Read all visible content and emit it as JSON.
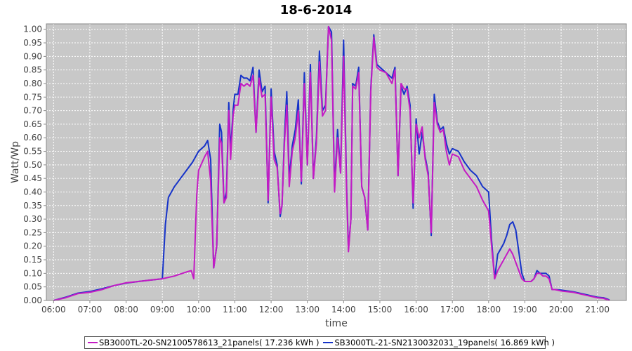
{
  "chart_data": {
    "type": "line",
    "title": "18-6-2014",
    "xlabel": "time",
    "ylabel": "Watt/Wp",
    "xlim": [
      "05:48",
      "21:48"
    ],
    "ylim": [
      0,
      1.02
    ],
    "grid": true,
    "legend_position": "bottom",
    "x_ticks": [
      "06:00",
      "07:00",
      "08:00",
      "09:00",
      "10:00",
      "11:00",
      "12:00",
      "13:00",
      "14:00",
      "15:00",
      "16:00",
      "17:00",
      "18:00",
      "19:00",
      "20:00",
      "21:00"
    ],
    "y_ticks": [
      "0.00",
      "0.05",
      "0.10",
      "0.15",
      "0.20",
      "0.25",
      "0.30",
      "0.35",
      "0.40",
      "0.45",
      "0.50",
      "0.55",
      "0.60",
      "0.65",
      "0.70",
      "0.75",
      "0.80",
      "0.85",
      "0.90",
      "0.95",
      "1.00"
    ],
    "series": [
      {
        "name": "SB3000TL-20-SN2100578613_21panels( 17.236 kWh )",
        "color": "#c41bc4",
        "points": [
          [
            "06:00",
            0.0
          ],
          [
            "06:20",
            0.01
          ],
          [
            "06:40",
            0.025
          ],
          [
            "07:00",
            0.03
          ],
          [
            "07:20",
            0.04
          ],
          [
            "07:40",
            0.055
          ],
          [
            "08:00",
            0.065
          ],
          [
            "08:20",
            0.07
          ],
          [
            "08:40",
            0.075
          ],
          [
            "09:00",
            0.08
          ],
          [
            "09:20",
            0.09
          ],
          [
            "09:40",
            0.105
          ],
          [
            "09:48",
            0.11
          ],
          [
            "09:52",
            0.08
          ],
          [
            "09:57",
            0.39
          ],
          [
            "10:00",
            0.48
          ],
          [
            "10:10",
            0.53
          ],
          [
            "10:15",
            0.55
          ],
          [
            "10:20",
            0.44
          ],
          [
            "10:25",
            0.12
          ],
          [
            "10:30",
            0.2
          ],
          [
            "10:35",
            0.6
          ],
          [
            "10:38",
            0.58
          ],
          [
            "10:42",
            0.36
          ],
          [
            "10:46",
            0.38
          ],
          [
            "10:50",
            0.7
          ],
          [
            "10:53",
            0.52
          ],
          [
            "10:57",
            0.68
          ],
          [
            "11:00",
            0.72
          ],
          [
            "11:05",
            0.72
          ],
          [
            "11:10",
            0.8
          ],
          [
            "11:15",
            0.79
          ],
          [
            "11:20",
            0.8
          ],
          [
            "11:25",
            0.79
          ],
          [
            "11:30",
            0.83
          ],
          [
            "11:35",
            0.62
          ],
          [
            "11:40",
            0.82
          ],
          [
            "11:45",
            0.75
          ],
          [
            "11:50",
            0.76
          ],
          [
            "11:55",
            0.37
          ],
          [
            "12:00",
            0.75
          ],
          [
            "12:05",
            0.52
          ],
          [
            "12:10",
            0.49
          ],
          [
            "12:15",
            0.32
          ],
          [
            "12:18",
            0.35
          ],
          [
            "12:22",
            0.58
          ],
          [
            "12:26",
            0.72
          ],
          [
            "12:30",
            0.42
          ],
          [
            "12:35",
            0.55
          ],
          [
            "12:40",
            0.6
          ],
          [
            "12:45",
            0.7
          ],
          [
            "12:50",
            0.44
          ],
          [
            "12:55",
            0.8
          ],
          [
            "13:00",
            0.5
          ],
          [
            "13:05",
            0.84
          ],
          [
            "13:10",
            0.45
          ],
          [
            "13:15",
            0.58
          ],
          [
            "13:20",
            0.88
          ],
          [
            "13:25",
            0.68
          ],
          [
            "13:30",
            0.7
          ],
          [
            "13:35",
            1.01
          ],
          [
            "13:40",
            0.96
          ],
          [
            "13:45",
            0.4
          ],
          [
            "13:50",
            0.6
          ],
          [
            "13:55",
            0.47
          ],
          [
            "14:00",
            0.9
          ],
          [
            "14:05",
            0.4
          ],
          [
            "14:08",
            0.18
          ],
          [
            "14:12",
            0.3
          ],
          [
            "14:15",
            0.79
          ],
          [
            "14:20",
            0.78
          ],
          [
            "14:25",
            0.84
          ],
          [
            "14:30",
            0.42
          ],
          [
            "14:35",
            0.38
          ],
          [
            "14:40",
            0.26
          ],
          [
            "14:45",
            0.77
          ],
          [
            "14:50",
            0.97
          ],
          [
            "14:55",
            0.86
          ],
          [
            "15:00",
            0.85
          ],
          [
            "15:10",
            0.84
          ],
          [
            "15:20",
            0.8
          ],
          [
            "15:25",
            0.85
          ],
          [
            "15:30",
            0.46
          ],
          [
            "15:35",
            0.8
          ],
          [
            "15:40",
            0.78
          ],
          [
            "15:45",
            0.78
          ],
          [
            "15:50",
            0.7
          ],
          [
            "15:55",
            0.36
          ],
          [
            "16:00",
            0.65
          ],
          [
            "16:05",
            0.6
          ],
          [
            "16:10",
            0.64
          ],
          [
            "16:15",
            0.52
          ],
          [
            "16:20",
            0.46
          ],
          [
            "16:25",
            0.25
          ],
          [
            "16:30",
            0.73
          ],
          [
            "16:35",
            0.65
          ],
          [
            "16:40",
            0.62
          ],
          [
            "16:45",
            0.63
          ],
          [
            "16:50",
            0.55
          ],
          [
            "16:55",
            0.5
          ],
          [
            "17:00",
            0.54
          ],
          [
            "17:10",
            0.53
          ],
          [
            "17:20",
            0.48
          ],
          [
            "17:30",
            0.45
          ],
          [
            "17:40",
            0.42
          ],
          [
            "17:50",
            0.37
          ],
          [
            "18:00",
            0.33
          ],
          [
            "18:05",
            0.2
          ],
          [
            "18:10",
            0.08
          ],
          [
            "18:15",
            0.11
          ],
          [
            "18:20",
            0.13
          ],
          [
            "18:25",
            0.15
          ],
          [
            "18:30",
            0.17
          ],
          [
            "18:35",
            0.19
          ],
          [
            "18:40",
            0.17
          ],
          [
            "18:45",
            0.14
          ],
          [
            "18:50",
            0.11
          ],
          [
            "18:55",
            0.08
          ],
          [
            "19:00",
            0.07
          ],
          [
            "19:10",
            0.07
          ],
          [
            "19:15",
            0.08
          ],
          [
            "19:20",
            0.1
          ],
          [
            "19:25",
            0.1
          ],
          [
            "19:30",
            0.09
          ],
          [
            "19:35",
            0.09
          ],
          [
            "19:40",
            0.08
          ],
          [
            "19:45",
            0.04
          ],
          [
            "19:50",
            0.04
          ],
          [
            "20:00",
            0.035
          ],
          [
            "20:20",
            0.03
          ],
          [
            "20:40",
            0.02
          ],
          [
            "21:00",
            0.01
          ],
          [
            "21:10",
            0.008
          ],
          [
            "21:20",
            0.0
          ]
        ]
      },
      {
        "name": "SB3000TL-21-SN2130032031_19panels( 16.869 kWh )",
        "color": "#1633c9",
        "points": [
          [
            "06:00",
            0.0
          ],
          [
            "06:20",
            0.012
          ],
          [
            "06:40",
            0.027
          ],
          [
            "07:00",
            0.033
          ],
          [
            "07:20",
            0.043
          ],
          [
            "07:40",
            0.055
          ],
          [
            "08:00",
            0.064
          ],
          [
            "08:20",
            0.07
          ],
          [
            "08:40",
            0.075
          ],
          [
            "09:00",
            0.08
          ],
          [
            "09:05",
            0.28
          ],
          [
            "09:10",
            0.38
          ],
          [
            "09:20",
            0.42
          ],
          [
            "09:30",
            0.45
          ],
          [
            "09:40",
            0.48
          ],
          [
            "09:50",
            0.51
          ],
          [
            "10:00",
            0.55
          ],
          [
            "10:10",
            0.57
          ],
          [
            "10:15",
            0.59
          ],
          [
            "10:20",
            0.52
          ],
          [
            "10:25",
            0.12
          ],
          [
            "10:30",
            0.2
          ],
          [
            "10:35",
            0.65
          ],
          [
            "10:38",
            0.62
          ],
          [
            "10:42",
            0.36
          ],
          [
            "10:46",
            0.4
          ],
          [
            "10:50",
            0.73
          ],
          [
            "10:53",
            0.55
          ],
          [
            "10:57",
            0.7
          ],
          [
            "11:00",
            0.76
          ],
          [
            "11:05",
            0.76
          ],
          [
            "11:10",
            0.83
          ],
          [
            "11:15",
            0.82
          ],
          [
            "11:20",
            0.82
          ],
          [
            "11:25",
            0.81
          ],
          [
            "11:30",
            0.86
          ],
          [
            "11:35",
            0.62
          ],
          [
            "11:40",
            0.85
          ],
          [
            "11:45",
            0.77
          ],
          [
            "11:50",
            0.79
          ],
          [
            "11:55",
            0.36
          ],
          [
            "12:00",
            0.78
          ],
          [
            "12:05",
            0.55
          ],
          [
            "12:10",
            0.5
          ],
          [
            "12:15",
            0.31
          ],
          [
            "12:18",
            0.35
          ],
          [
            "12:22",
            0.6
          ],
          [
            "12:26",
            0.77
          ],
          [
            "12:30",
            0.45
          ],
          [
            "12:35",
            0.57
          ],
          [
            "12:40",
            0.63
          ],
          [
            "12:45",
            0.74
          ],
          [
            "12:50",
            0.43
          ],
          [
            "12:55",
            0.84
          ],
          [
            "13:00",
            0.5
          ],
          [
            "13:05",
            0.87
          ],
          [
            "13:10",
            0.45
          ],
          [
            "13:15",
            0.6
          ],
          [
            "13:20",
            0.92
          ],
          [
            "13:25",
            0.7
          ],
          [
            "13:30",
            0.72
          ],
          [
            "13:35",
            1.01
          ],
          [
            "13:40",
            0.99
          ],
          [
            "13:45",
            0.42
          ],
          [
            "13:50",
            0.63
          ],
          [
            "13:55",
            0.47
          ],
          [
            "14:00",
            0.96
          ],
          [
            "14:05",
            0.42
          ],
          [
            "14:08",
            0.19
          ],
          [
            "14:12",
            0.3
          ],
          [
            "14:15",
            0.8
          ],
          [
            "14:20",
            0.79
          ],
          [
            "14:25",
            0.86
          ],
          [
            "14:30",
            0.42
          ],
          [
            "14:35",
            0.38
          ],
          [
            "14:40",
            0.26
          ],
          [
            "14:45",
            0.78
          ],
          [
            "14:50",
            0.98
          ],
          [
            "14:55",
            0.87
          ],
          [
            "15:00",
            0.86
          ],
          [
            "15:10",
            0.84
          ],
          [
            "15:20",
            0.82
          ],
          [
            "15:25",
            0.86
          ],
          [
            "15:30",
            0.46
          ],
          [
            "15:35",
            0.79
          ],
          [
            "15:40",
            0.76
          ],
          [
            "15:45",
            0.79
          ],
          [
            "15:50",
            0.72
          ],
          [
            "15:55",
            0.34
          ],
          [
            "16:00",
            0.67
          ],
          [
            "16:05",
            0.54
          ],
          [
            "16:10",
            0.62
          ],
          [
            "16:15",
            0.53
          ],
          [
            "16:20",
            0.47
          ],
          [
            "16:25",
            0.24
          ],
          [
            "16:30",
            0.76
          ],
          [
            "16:35",
            0.66
          ],
          [
            "16:40",
            0.63
          ],
          [
            "16:45",
            0.64
          ],
          [
            "16:50",
            0.58
          ],
          [
            "16:55",
            0.54
          ],
          [
            "17:00",
            0.56
          ],
          [
            "17:10",
            0.55
          ],
          [
            "17:20",
            0.51
          ],
          [
            "17:30",
            0.48
          ],
          [
            "17:40",
            0.46
          ],
          [
            "17:50",
            0.42
          ],
          [
            "18:00",
            0.4
          ],
          [
            "18:05",
            0.22
          ],
          [
            "18:10",
            0.08
          ],
          [
            "18:15",
            0.17
          ],
          [
            "18:20",
            0.19
          ],
          [
            "18:25",
            0.21
          ],
          [
            "18:30",
            0.24
          ],
          [
            "18:35",
            0.28
          ],
          [
            "18:40",
            0.29
          ],
          [
            "18:45",
            0.26
          ],
          [
            "18:50",
            0.18
          ],
          [
            "18:55",
            0.1
          ],
          [
            "19:00",
            0.07
          ],
          [
            "19:10",
            0.07
          ],
          [
            "19:15",
            0.08
          ],
          [
            "19:20",
            0.11
          ],
          [
            "19:25",
            0.1
          ],
          [
            "19:30",
            0.1
          ],
          [
            "19:35",
            0.1
          ],
          [
            "19:40",
            0.09
          ],
          [
            "19:45",
            0.04
          ],
          [
            "19:50",
            0.04
          ],
          [
            "20:00",
            0.038
          ],
          [
            "20:20",
            0.032
          ],
          [
            "20:40",
            0.022
          ],
          [
            "21:00",
            0.012
          ],
          [
            "21:10",
            0.01
          ],
          [
            "21:20",
            0.002
          ]
        ]
      }
    ]
  }
}
